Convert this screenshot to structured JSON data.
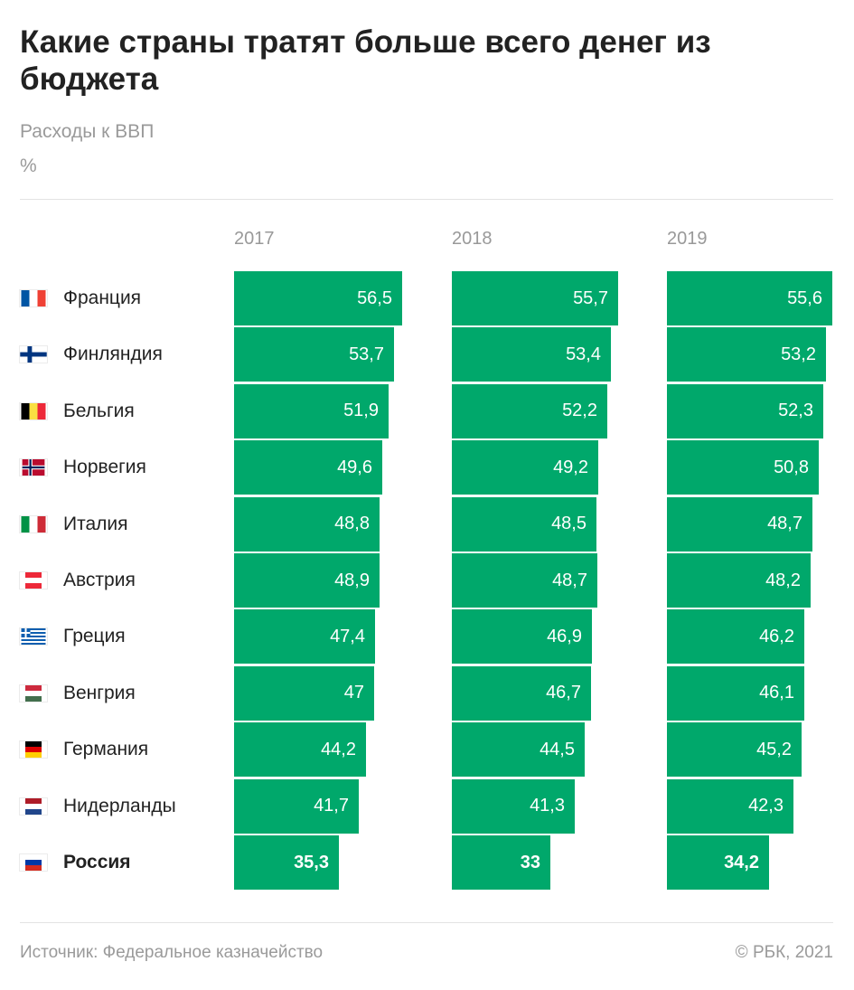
{
  "header": {
    "title": "Какие страны тратят больше всего денег из бюджета",
    "subtitle": "Расходы к ВВП",
    "unit": "%"
  },
  "footer": {
    "source": "Источник: Федеральное казначейство",
    "copyright": "© РБК, 2021"
  },
  "colors": {
    "bar": "#00a86b",
    "text": "#222222",
    "muted": "#9a9a9a"
  },
  "chart_data": {
    "type": "bar",
    "orientation": "horizontal",
    "title": "Какие страны тратят больше всего денег из бюджета",
    "subtitle": "Расходы к ВВП",
    "unit": "%",
    "categories": [
      "Франция",
      "Финляндия",
      "Бельгия",
      "Норвегия",
      "Италия",
      "Австрия",
      "Греция",
      "Венгрия",
      "Германия",
      "Нидерланды",
      "Россия"
    ],
    "flags": [
      "france-flag-icon",
      "finland-flag-icon",
      "belgium-flag-icon",
      "norway-flag-icon",
      "italy-flag-icon",
      "austria-flag-icon",
      "greece-flag-icon",
      "hungary-flag-icon",
      "germany-flag-icon",
      "netherlands-flag-icon",
      "russia-flag-icon"
    ],
    "highlight": "Россия",
    "series": [
      {
        "name": "2017",
        "values": [
          56.5,
          53.7,
          51.9,
          49.6,
          48.8,
          48.9,
          47.4,
          47,
          44.2,
          41.7,
          35.3
        ],
        "labels": [
          "56,5",
          "53,7",
          "51,9",
          "49,6",
          "48,8",
          "48,9",
          "47,4",
          "47",
          "44,2",
          "41,7",
          "35,3"
        ]
      },
      {
        "name": "2018",
        "values": [
          55.7,
          53.4,
          52.2,
          49.2,
          48.5,
          48.7,
          46.9,
          46.7,
          44.5,
          41.3,
          33
        ],
        "labels": [
          "55,7",
          "53,4",
          "52,2",
          "49,2",
          "48,5",
          "48,7",
          "46,9",
          "46,7",
          "44,5",
          "41,3",
          "33"
        ]
      },
      {
        "name": "2019",
        "values": [
          55.6,
          53.2,
          52.3,
          50.8,
          48.7,
          48.2,
          46.2,
          46.1,
          45.2,
          42.3,
          34.2
        ],
        "labels": [
          "55,6",
          "53,2",
          "52,3",
          "50,8",
          "48,7",
          "48,2",
          "46,2",
          "46,1",
          "45,2",
          "42,3",
          "34,2"
        ]
      }
    ]
  }
}
